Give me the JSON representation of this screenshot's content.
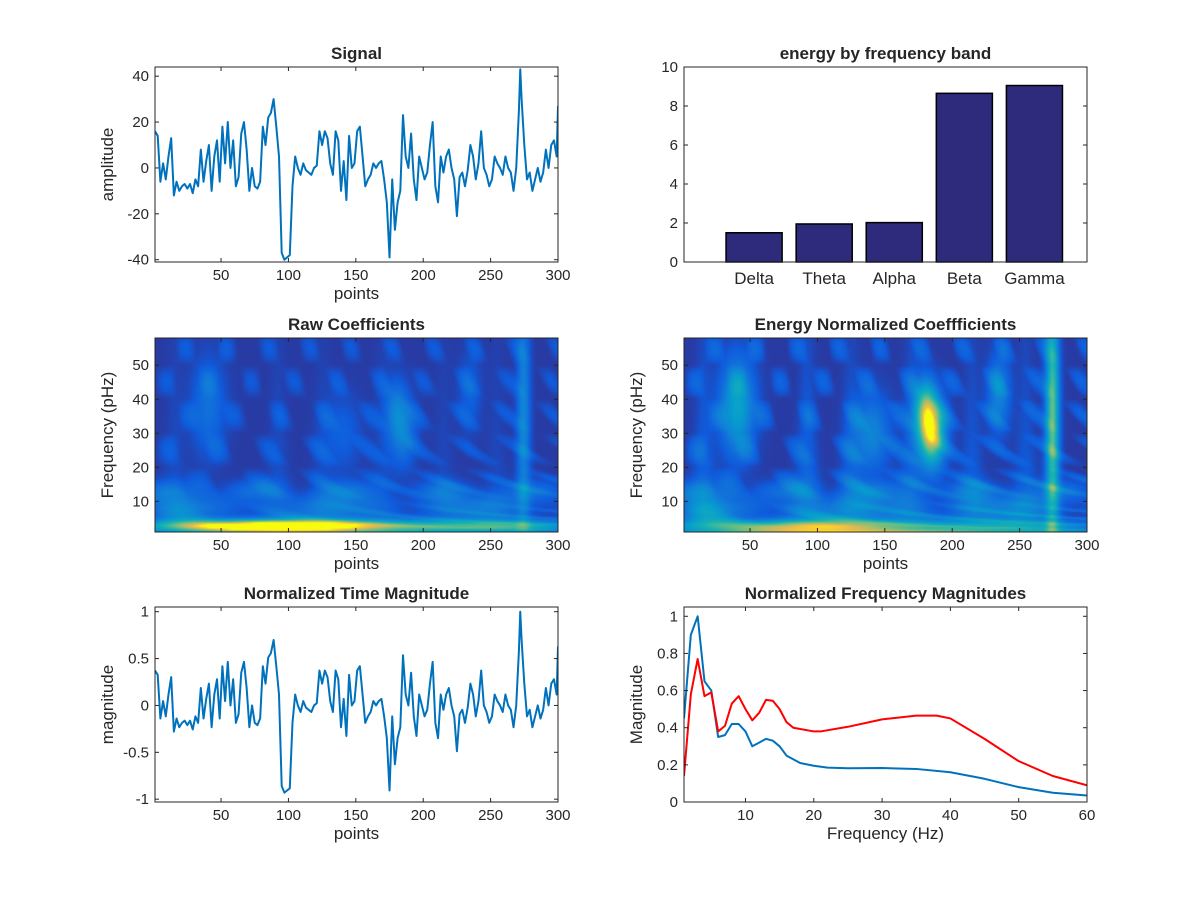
{
  "chart_data": [
    {
      "id": "signal",
      "type": "line",
      "title": "Signal",
      "xlabel": "points",
      "ylabel": "amplitude",
      "xlim": [
        1,
        300
      ],
      "ylim": [
        -41,
        44
      ],
      "xticks": [
        50,
        100,
        150,
        200,
        250,
        300
      ],
      "yticks": [
        -40,
        -20,
        0,
        20,
        40
      ],
      "color": "#0072BD",
      "points": [
        [
          1,
          16
        ],
        [
          3,
          14
        ],
        [
          5,
          -6
        ],
        [
          7,
          2
        ],
        [
          9,
          -5
        ],
        [
          11,
          5
        ],
        [
          13,
          13
        ],
        [
          15,
          -12
        ],
        [
          17,
          -6
        ],
        [
          19,
          -10
        ],
        [
          21,
          -8
        ],
        [
          23,
          -7
        ],
        [
          25,
          -9
        ],
        [
          27,
          -7
        ],
        [
          29,
          -11
        ],
        [
          31,
          -5
        ],
        [
          33,
          -8
        ],
        [
          35,
          8
        ],
        [
          37,
          -6
        ],
        [
          39,
          3
        ],
        [
          41,
          10
        ],
        [
          43,
          -10
        ],
        [
          45,
          5
        ],
        [
          47,
          12
        ],
        [
          49,
          -6
        ],
        [
          51,
          18
        ],
        [
          53,
          2
        ],
        [
          55,
          20
        ],
        [
          57,
          0
        ],
        [
          59,
          12
        ],
        [
          61,
          -8
        ],
        [
          63,
          -4
        ],
        [
          65,
          15
        ],
        [
          67,
          20
        ],
        [
          69,
          8
        ],
        [
          71,
          -10
        ],
        [
          73,
          0
        ],
        [
          75,
          -8
        ],
        [
          77,
          -9
        ],
        [
          79,
          -6
        ],
        [
          81,
          18
        ],
        [
          83,
          10
        ],
        [
          85,
          22
        ],
        [
          87,
          24
        ],
        [
          89,
          30
        ],
        [
          91,
          18
        ],
        [
          93,
          5
        ],
        [
          95,
          -37
        ],
        [
          97,
          -40
        ],
        [
          99,
          -39
        ],
        [
          101,
          -38
        ],
        [
          103,
          -8
        ],
        [
          105,
          5
        ],
        [
          107,
          0
        ],
        [
          109,
          -3
        ],
        [
          111,
          2
        ],
        [
          113,
          -1
        ],
        [
          115,
          -2
        ],
        [
          117,
          -3
        ],
        [
          119,
          0
        ],
        [
          121,
          1
        ],
        [
          123,
          16
        ],
        [
          125,
          10
        ],
        [
          127,
          16
        ],
        [
          129,
          13
        ],
        [
          131,
          2
        ],
        [
          133,
          -3
        ],
        [
          135,
          16
        ],
        [
          137,
          12
        ],
        [
          139,
          -10
        ],
        [
          141,
          3
        ],
        [
          143,
          -14
        ],
        [
          145,
          14
        ],
        [
          147,
          0
        ],
        [
          149,
          2
        ],
        [
          151,
          16
        ],
        [
          153,
          18
        ],
        [
          155,
          5
        ],
        [
          157,
          -8
        ],
        [
          159,
          -5
        ],
        [
          161,
          -3
        ],
        [
          163,
          2
        ],
        [
          165,
          0
        ],
        [
          167,
          2
        ],
        [
          169,
          3
        ],
        [
          171,
          -5
        ],
        [
          173,
          -15
        ],
        [
          175,
          -39
        ],
        [
          177,
          -5
        ],
        [
          179,
          -27
        ],
        [
          181,
          -15
        ],
        [
          183,
          -10
        ],
        [
          185,
          23
        ],
        [
          187,
          5
        ],
        [
          189,
          0
        ],
        [
          191,
          15
        ],
        [
          193,
          -5
        ],
        [
          195,
          -14
        ],
        [
          197,
          5
        ],
        [
          199,
          0
        ],
        [
          201,
          -5
        ],
        [
          203,
          -2
        ],
        [
          205,
          10
        ],
        [
          207,
          20
        ],
        [
          209,
          -8
        ],
        [
          211,
          -15
        ],
        [
          213,
          5
        ],
        [
          215,
          -2
        ],
        [
          217,
          5
        ],
        [
          219,
          8
        ],
        [
          221,
          0
        ],
        [
          223,
          -5
        ],
        [
          225,
          -21
        ],
        [
          227,
          -4
        ],
        [
          229,
          -2
        ],
        [
          231,
          -8
        ],
        [
          233,
          -1
        ],
        [
          235,
          10
        ],
        [
          237,
          5
        ],
        [
          239,
          -5
        ],
        [
          241,
          2
        ],
        [
          243,
          16
        ],
        [
          245,
          0
        ],
        [
          247,
          -3
        ],
        [
          249,
          -8
        ],
        [
          251,
          -5
        ],
        [
          253,
          5
        ],
        [
          255,
          2
        ],
        [
          257,
          0
        ],
        [
          259,
          -3
        ],
        [
          261,
          5
        ],
        [
          263,
          0
        ],
        [
          265,
          -2
        ],
        [
          267,
          -10
        ],
        [
          269,
          0
        ],
        [
          271,
          25
        ],
        [
          272,
          43
        ],
        [
          273,
          30
        ],
        [
          275,
          10
        ],
        [
          277,
          -5
        ],
        [
          279,
          -2
        ],
        [
          281,
          -10
        ],
        [
          283,
          -5
        ],
        [
          285,
          0
        ],
        [
          287,
          -6
        ],
        [
          289,
          -2
        ],
        [
          291,
          8
        ],
        [
          293,
          0
        ],
        [
          295,
          10
        ],
        [
          297,
          12
        ],
        [
          299,
          5
        ],
        [
          300,
          27
        ]
      ]
    },
    {
      "id": "bands",
      "type": "bar",
      "title": "energy by frequency band",
      "categories": [
        "Delta",
        "Theta",
        "Alpha",
        "Beta",
        "Gamma"
      ],
      "values": [
        1.5,
        1.95,
        2.02,
        8.65,
        9.05
      ],
      "xlim": [
        -0.5,
        5.25
      ],
      "ylim": [
        0,
        10
      ],
      "yticks": [
        0,
        2,
        4,
        6,
        8,
        10
      ],
      "color": "#2E2A7C"
    },
    {
      "id": "raw",
      "type": "heatmap",
      "title": "Raw Coefficients",
      "xlabel": "points",
      "ylabel": "Frequency (pHz)",
      "xlim": [
        1,
        300
      ],
      "ylim": [
        1,
        58
      ],
      "xticks": [
        50,
        100,
        150,
        200,
        250,
        300
      ],
      "yticks": [
        10,
        20,
        30,
        40,
        50
      ],
      "colormap": "parula"
    },
    {
      "id": "norm",
      "type": "heatmap",
      "title": "Energy Normalized Coeffficients",
      "xlabel": "points",
      "ylabel": "Frequency (pHz)",
      "xlim": [
        1,
        300
      ],
      "ylim": [
        1,
        58
      ],
      "xticks": [
        50,
        100,
        150,
        200,
        250,
        300
      ],
      "yticks": [
        10,
        20,
        30,
        40,
        50
      ],
      "colormap": "parula"
    },
    {
      "id": "timemag",
      "type": "line",
      "title": "Normalized Time Magnitude",
      "xlabel": "points",
      "ylabel": "magnitude",
      "xlim": [
        1,
        300
      ],
      "ylim": [
        -1.03,
        1.05
      ],
      "xticks": [
        50,
        100,
        150,
        200,
        250,
        300
      ],
      "yticks": [
        -1,
        -0.5,
        0,
        0.5,
        1
      ],
      "yticklabels": [
        "-1",
        "-0.5",
        "0",
        "0.5",
        "1"
      ],
      "color": "#0072BD",
      "derived_from": "signal",
      "scale_divisor": 43
    },
    {
      "id": "freqmag",
      "type": "line",
      "title": "Normalized Frequency Magnitudes",
      "xlabel": "Frequency (Hz)",
      "ylabel": "Magnitude",
      "xlim": [
        1,
        60
      ],
      "ylim": [
        0,
        1.05
      ],
      "xticks": [
        10,
        20,
        30,
        40,
        50,
        60
      ],
      "yticks": [
        0,
        0.2,
        0.4,
        0.6,
        0.8,
        1
      ],
      "yticklabels": [
        "0",
        "0.2",
        "0.4",
        "0.6",
        "0.8",
        "1"
      ],
      "series": [
        {
          "color": "#0072BD",
          "points": [
            [
              1,
              0.45
            ],
            [
              2,
              0.9
            ],
            [
              3,
              1.0
            ],
            [
              4,
              0.65
            ],
            [
              5,
              0.6
            ],
            [
              6,
              0.35
            ],
            [
              7,
              0.36
            ],
            [
              8,
              0.42
            ],
            [
              9,
              0.42
            ],
            [
              10,
              0.38
            ],
            [
              11,
              0.3
            ],
            [
              12,
              0.32
            ],
            [
              13,
              0.34
            ],
            [
              14,
              0.33
            ],
            [
              15,
              0.3
            ],
            [
              16,
              0.25
            ],
            [
              18,
              0.21
            ],
            [
              20,
              0.195
            ],
            [
              22,
              0.185
            ],
            [
              25,
              0.182
            ],
            [
              30,
              0.183
            ],
            [
              35,
              0.178
            ],
            [
              40,
              0.16
            ],
            [
              45,
              0.125
            ],
            [
              50,
              0.08
            ],
            [
              55,
              0.05
            ],
            [
              60,
              0.035
            ]
          ]
        },
        {
          "color": "#FF0000",
          "points": [
            [
              1,
              0.14
            ],
            [
              2,
              0.58
            ],
            [
              3,
              0.77
            ],
            [
              4,
              0.57
            ],
            [
              5,
              0.59
            ],
            [
              6,
              0.38
            ],
            [
              7,
              0.41
            ],
            [
              8,
              0.53
            ],
            [
              9,
              0.57
            ],
            [
              10,
              0.5
            ],
            [
              11,
              0.44
            ],
            [
              12,
              0.48
            ],
            [
              13,
              0.55
            ],
            [
              14,
              0.545
            ],
            [
              15,
              0.5
            ],
            [
              16,
              0.43
            ],
            [
              17,
              0.4
            ],
            [
              20,
              0.38
            ],
            [
              21,
              0.38
            ],
            [
              25,
              0.405
            ],
            [
              30,
              0.445
            ],
            [
              35,
              0.465
            ],
            [
              38,
              0.465
            ],
            [
              40,
              0.45
            ],
            [
              45,
              0.34
            ],
            [
              50,
              0.22
            ],
            [
              55,
              0.14
            ],
            [
              60,
              0.09
            ]
          ]
        }
      ]
    }
  ]
}
